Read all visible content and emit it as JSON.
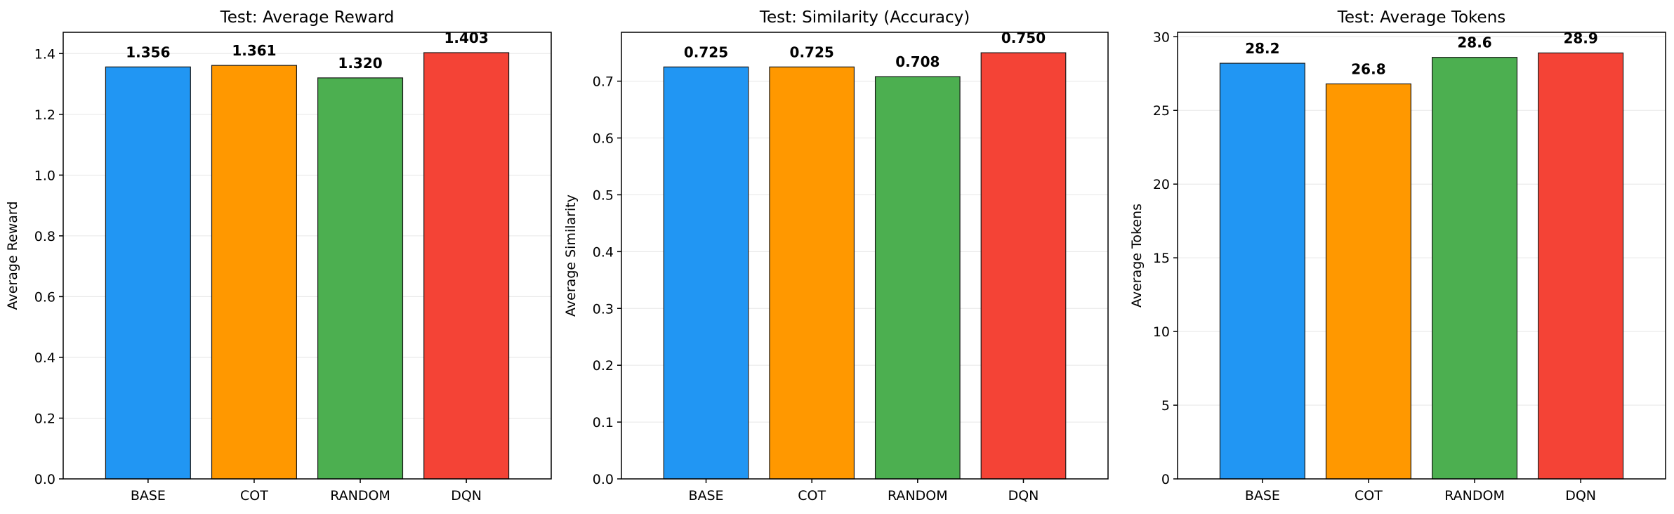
{
  "chart_data": [
    {
      "type": "bar",
      "title": "Test: Average Reward",
      "xlabel": "",
      "ylabel": "Average Reward",
      "categories": [
        "BASE",
        "COT",
        "RANDOM",
        "DQN"
      ],
      "values": [
        1.356,
        1.361,
        1.32,
        1.403
      ],
      "value_labels": [
        "1.356",
        "1.361",
        "1.320",
        "1.403"
      ],
      "colors": [
        "#2196F3",
        "#FF9800",
        "#4CAF50",
        "#F44336"
      ],
      "ylim": [
        0,
        1.47
      ],
      "yticks": [
        0.0,
        0.2,
        0.4,
        0.6,
        0.8,
        1.0,
        1.2,
        1.4
      ],
      "ytick_labels": [
        "0.0",
        "0.2",
        "0.4",
        "0.6",
        "0.8",
        "1.0",
        "1.2",
        "1.4"
      ],
      "grid": "horizontal"
    },
    {
      "type": "bar",
      "title": "Test: Similarity (Accuracy)",
      "xlabel": "",
      "ylabel": "Average Similarity",
      "categories": [
        "BASE",
        "COT",
        "RANDOM",
        "DQN"
      ],
      "values": [
        0.725,
        0.725,
        0.708,
        0.75
      ],
      "value_labels": [
        "0.725",
        "0.725",
        "0.708",
        "0.750"
      ],
      "colors": [
        "#2196F3",
        "#FF9800",
        "#4CAF50",
        "#F44336"
      ],
      "ylim": [
        0,
        0.786
      ],
      "yticks": [
        0.0,
        0.1,
        0.2,
        0.3,
        0.4,
        0.5,
        0.6,
        0.7
      ],
      "ytick_labels": [
        "0.0",
        "0.1",
        "0.2",
        "0.3",
        "0.4",
        "0.5",
        "0.6",
        "0.7"
      ],
      "grid": "horizontal"
    },
    {
      "type": "bar",
      "title": "Test: Average Tokens",
      "xlabel": "",
      "ylabel": "Average Tokens",
      "categories": [
        "BASE",
        "COT",
        "RANDOM",
        "DQN"
      ],
      "values": [
        28.2,
        26.8,
        28.6,
        28.9
      ],
      "value_labels": [
        "28.2",
        "26.8",
        "28.6",
        "28.9"
      ],
      "colors": [
        "#2196F3",
        "#FF9800",
        "#4CAF50",
        "#F44336"
      ],
      "ylim": [
        0,
        30.3
      ],
      "yticks": [
        0,
        5,
        10,
        15,
        20,
        25,
        30
      ],
      "ytick_labels": [
        "0",
        "5",
        "10",
        "15",
        "20",
        "25",
        "30"
      ],
      "grid": "horizontal"
    }
  ]
}
